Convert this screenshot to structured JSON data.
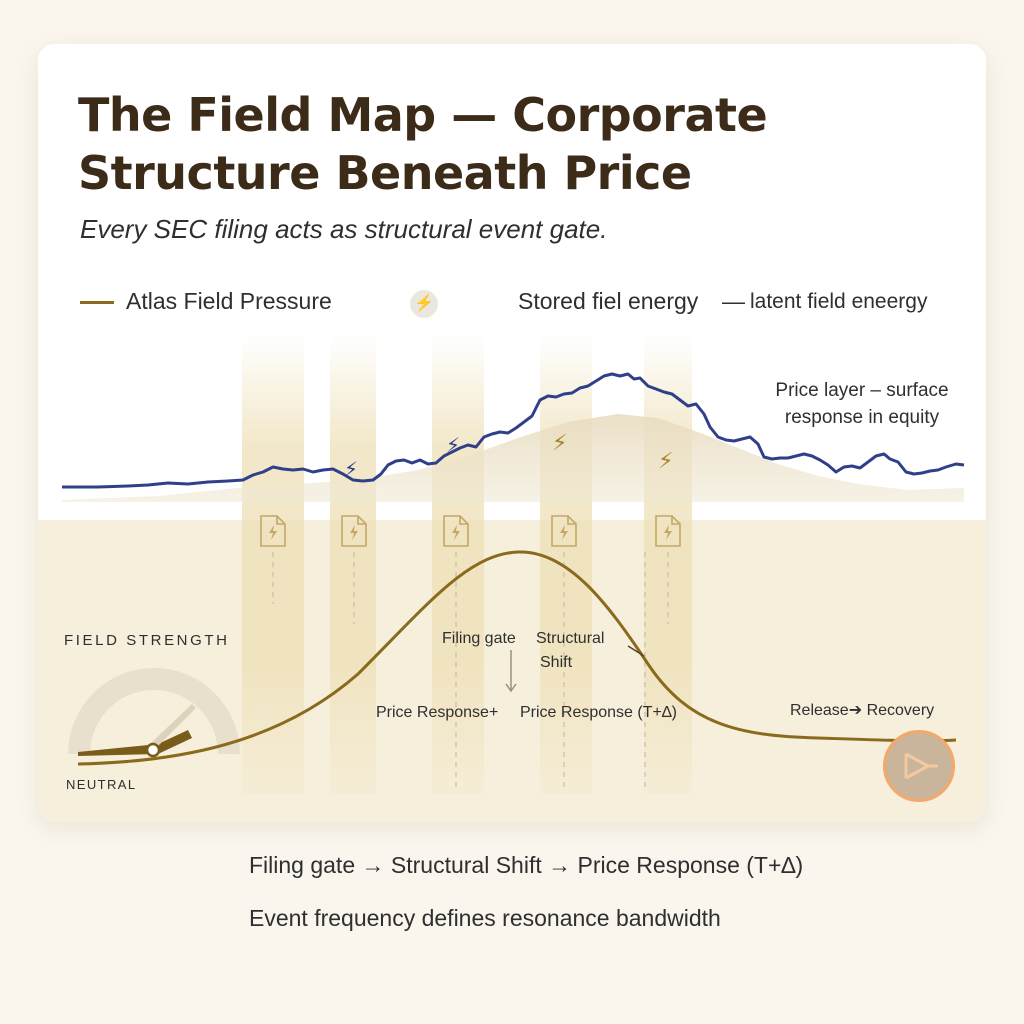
{
  "title": {
    "line1": "The Field Map — Corporate",
    "line2": "Structure Beneath Price"
  },
  "subtitle": "Every SEC filing acts as structural event gate.",
  "legend": {
    "pressure_label": "Atlas Field Pressure",
    "pressure_color": "#8a6a1d",
    "bolt_icon": "lightning-bolt-icon",
    "stored_label": "Stored fiel energy",
    "dash": "—",
    "latent_label": "latent field eneergy"
  },
  "annotations": {
    "price_layer_1": "Price layer – surface",
    "price_layer_2": "response in equity",
    "filing_gate": "Filing gate",
    "structural_1": "Structural",
    "structural_2": "Shift",
    "price_response_a": "Price Response+",
    "price_response_b": "Price Response (T+∆)",
    "release": "Release",
    "recovery": "Recovery",
    "field_strength": "FIELD STRENGTH",
    "neutral": "NEUTRAL"
  },
  "colors": {
    "price_line": "#2f3f8a",
    "field_curve": "#8a6a1d",
    "gate_band": "#eedfb5",
    "lower_panel": "#f6efdc",
    "title": "#3c2b18",
    "play_ring": "#f4a86a"
  },
  "icons": {
    "event": "lightning-bolt-icon",
    "filing": "document-bolt-icon",
    "play": "play-icon"
  },
  "footer": {
    "line1": "Filing gate → Structural Shift → Price Response (T+∆)",
    "line2": "Event frequency defines resonance bandwidth"
  }
}
